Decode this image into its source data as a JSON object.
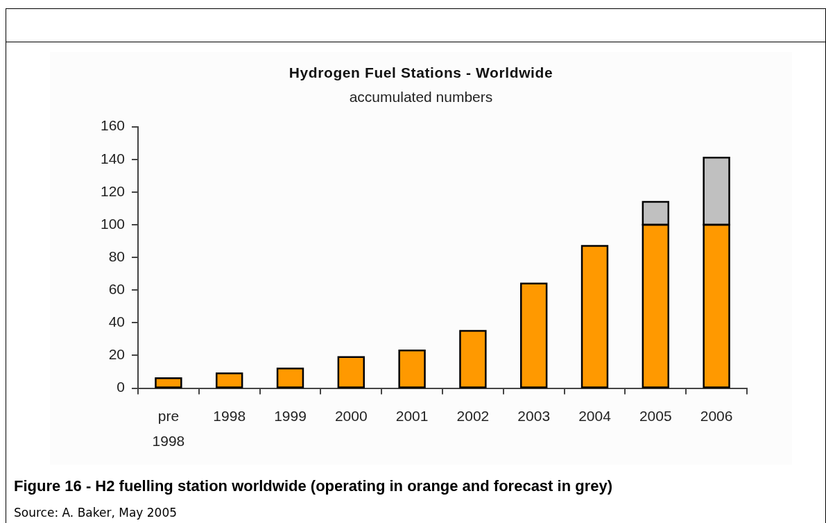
{
  "chart_data": {
    "type": "bar",
    "title": "Hydrogen Fuel Stations - Worldwide",
    "subtitle": "accumulated numbers",
    "categories": [
      "pre 1998",
      "1998",
      "1999",
      "2000",
      "2001",
      "2002",
      "2003",
      "2004",
      "2005",
      "2006"
    ],
    "series": [
      {
        "color": "#ff9900",
        "values": [
          6,
          9,
          12,
          19,
          23,
          35,
          64,
          87,
          100,
          100
        ]
      },
      {
        "color": "#c0c0c0",
        "values": [
          null,
          null,
          null,
          null,
          null,
          null,
          null,
          null,
          14,
          41
        ]
      }
    ],
    "stacked": true,
    "ylim": [
      0,
      160
    ],
    "yticks": [
      0,
      20,
      40,
      60,
      80,
      100,
      120,
      140,
      160
    ],
    "grid": false,
    "annotations": [
      "Figure 16 - H2 fuelling station worldwide (operating in orange and forecast in grey)",
      "Source: A. Baker, May 2005"
    ]
  }
}
